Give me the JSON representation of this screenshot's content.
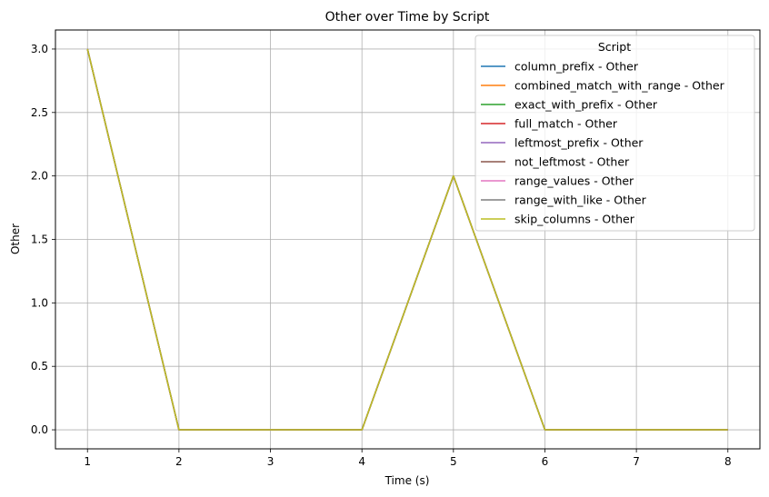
{
  "chart_data": {
    "type": "line",
    "title": "Other over Time by Script",
    "xlabel": "Time (s)",
    "ylabel": "Other",
    "xlim": [
      0.65,
      8.35
    ],
    "ylim": [
      -0.15,
      3.15
    ],
    "xticks": [
      1,
      2,
      3,
      4,
      5,
      6,
      7,
      8
    ],
    "yticks": [
      "0.0",
      "0.5",
      "1.0",
      "1.5",
      "2.0",
      "2.5",
      "3.0"
    ],
    "grid": true,
    "legend": {
      "title": "Script",
      "placement": "top-right"
    },
    "x": [
      1,
      2,
      3,
      4,
      5,
      6,
      7,
      8
    ],
    "series": [
      {
        "name": "column_prefix - Other",
        "color": "#1f77b4",
        "values": [
          3,
          0,
          0,
          0,
          2,
          0,
          0,
          0
        ]
      },
      {
        "name": "combined_match_with_range - Other",
        "color": "#ff7f0e",
        "values": [
          3,
          0,
          0,
          0,
          2,
          0,
          0,
          0
        ]
      },
      {
        "name": "exact_with_prefix - Other",
        "color": "#2ca02c",
        "values": [
          3,
          0,
          0,
          0,
          2,
          0,
          0,
          0
        ]
      },
      {
        "name": "full_match - Other",
        "color": "#d62728",
        "values": [
          3,
          0,
          0,
          0,
          2,
          0,
          0,
          0
        ]
      },
      {
        "name": "leftmost_prefix - Other",
        "color": "#9467bd",
        "values": [
          3,
          0,
          0,
          0,
          2,
          0,
          0,
          0
        ]
      },
      {
        "name": "not_leftmost - Other",
        "color": "#8c564b",
        "values": [
          3,
          0,
          0,
          0,
          2,
          0,
          0,
          0
        ]
      },
      {
        "name": "range_values - Other",
        "color": "#e377c2",
        "values": [
          3,
          0,
          0,
          0,
          2,
          0,
          0,
          0
        ]
      },
      {
        "name": "range_with_like - Other",
        "color": "#7f7f7f",
        "values": [
          3,
          0,
          0,
          0,
          2,
          0,
          0,
          0
        ]
      },
      {
        "name": "skip_columns - Other",
        "color": "#bcbd22",
        "values": [
          3,
          0,
          0,
          0,
          2,
          0,
          0,
          0
        ]
      }
    ]
  }
}
